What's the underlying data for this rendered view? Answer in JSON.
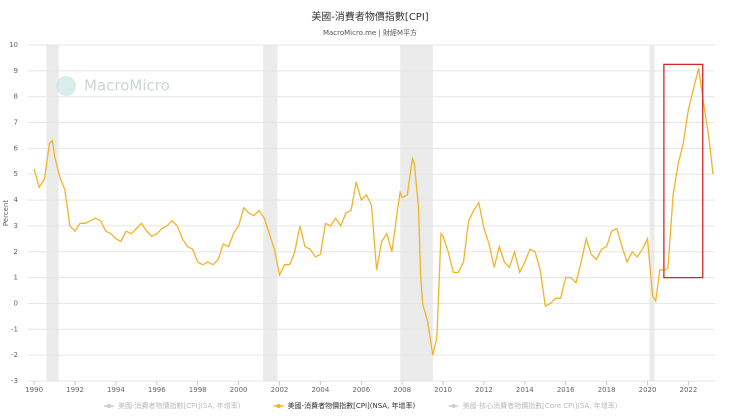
{
  "chart_data": {
    "type": "line",
    "title": "美國-消費者物價指數[CPI]",
    "subtitle": "MacroMicro.me | 財經M平方",
    "watermark": "MacroMicro",
    "y_label": "Percent",
    "xlim": [
      1989.7,
      2023.3
    ],
    "ylim": [
      -3,
      10
    ],
    "xticks": [
      1990,
      1992,
      1994,
      1996,
      1998,
      2000,
      2002,
      2004,
      2006,
      2008,
      2010,
      2012,
      2014,
      2016,
      2018,
      2020,
      2022
    ],
    "yticks": [
      -3,
      -2,
      -1,
      0,
      1,
      2,
      3,
      4,
      5,
      6,
      7,
      8,
      9,
      10
    ],
    "grid": true,
    "recessions": [
      [
        1990.6,
        1991.2
      ],
      [
        2001.2,
        2001.9
      ],
      [
        2007.9,
        2009.5
      ],
      [
        2020.1,
        2020.35
      ]
    ],
    "highlight": {
      "x": [
        2020.8,
        2022.7
      ],
      "y": [
        1,
        9.25
      ],
      "color": "#d62728"
    },
    "x": [
      1990.0,
      1990.25,
      1990.5,
      1990.75,
      1990.9,
      1991.0,
      1991.25,
      1991.5,
      1991.75,
      1992.0,
      1992.25,
      1992.5,
      1992.75,
      1993.0,
      1993.25,
      1993.5,
      1993.75,
      1994.0,
      1994.25,
      1994.5,
      1994.75,
      1995.0,
      1995.25,
      1995.5,
      1995.75,
      1996.0,
      1996.25,
      1996.5,
      1996.75,
      1997.0,
      1997.25,
      1997.5,
      1997.75,
      1998.0,
      1998.25,
      1998.5,
      1998.75,
      1999.0,
      1999.25,
      1999.5,
      1999.75,
      2000.0,
      2000.25,
      2000.5,
      2000.75,
      2001.0,
      2001.25,
      2001.5,
      2001.75,
      2002.0,
      2002.25,
      2002.5,
      2002.75,
      2003.0,
      2003.25,
      2003.5,
      2003.75,
      2004.0,
      2004.25,
      2004.5,
      2004.75,
      2005.0,
      2005.25,
      2005.5,
      2005.75,
      2006.0,
      2006.25,
      2006.5,
      2006.75,
      2007.0,
      2007.25,
      2007.5,
      2007.75,
      2007.9,
      2008.0,
      2008.25,
      2008.5,
      2008.6,
      2008.8,
      2008.9,
      2009.0,
      2009.25,
      2009.5,
      2009.7,
      2009.9,
      2010.0,
      2010.25,
      2010.5,
      2010.75,
      2011.0,
      2011.25,
      2011.5,
      2011.75,
      2012.0,
      2012.25,
      2012.5,
      2012.75,
      2013.0,
      2013.25,
      2013.5,
      2013.75,
      2014.0,
      2014.25,
      2014.5,
      2014.75,
      2015.0,
      2015.25,
      2015.5,
      2015.75,
      2016.0,
      2016.25,
      2016.5,
      2016.75,
      2017.0,
      2017.25,
      2017.5,
      2017.75,
      2018.0,
      2018.25,
      2018.5,
      2018.75,
      2019.0,
      2019.25,
      2019.5,
      2019.75,
      2020.0,
      2020.25,
      2020.4,
      2020.6,
      2020.9,
      2021.0,
      2021.25,
      2021.5,
      2021.75,
      2022.0,
      2022.25,
      2022.5,
      2022.75,
      2023.0,
      2023.2
    ],
    "series": [
      {
        "name": "美國-消費者物價指數[CPI](NSA, 年增率)",
        "color": "#f0b429",
        "values": [
          5.2,
          4.5,
          4.8,
          6.2,
          6.3,
          5.7,
          4.9,
          4.4,
          3.0,
          2.8,
          3.1,
          3.1,
          3.2,
          3.3,
          3.2,
          2.8,
          2.7,
          2.5,
          2.4,
          2.8,
          2.7,
          2.9,
          3.1,
          2.8,
          2.6,
          2.7,
          2.9,
          3.0,
          3.2,
          3.0,
          2.5,
          2.2,
          2.1,
          1.6,
          1.5,
          1.6,
          1.5,
          1.7,
          2.3,
          2.2,
          2.7,
          3.0,
          3.7,
          3.5,
          3.4,
          3.6,
          3.3,
          2.7,
          2.1,
          1.1,
          1.5,
          1.5,
          2.0,
          3.0,
          2.2,
          2.1,
          1.8,
          1.9,
          3.1,
          3.0,
          3.3,
          3.0,
          3.5,
          3.6,
          4.7,
          4.0,
          4.2,
          3.8,
          1.3,
          2.4,
          2.7,
          2.0,
          3.5,
          4.3,
          4.1,
          4.2,
          5.6,
          5.4,
          3.7,
          1.1,
          0.0,
          -0.7,
          -2.0,
          -1.3,
          2.7,
          2.6,
          2.0,
          1.2,
          1.2,
          1.6,
          3.2,
          3.6,
          3.9,
          2.9,
          2.3,
          1.4,
          2.2,
          1.6,
          1.4,
          2.0,
          1.2,
          1.6,
          2.1,
          2.0,
          1.3,
          -0.1,
          0.0,
          0.2,
          0.2,
          1.0,
          1.0,
          0.8,
          1.6,
          2.5,
          1.9,
          1.7,
          2.1,
          2.2,
          2.8,
          2.9,
          2.2,
          1.6,
          2.0,
          1.8,
          2.1,
          2.5,
          0.3,
          0.1,
          1.3,
          1.3,
          1.4,
          4.2,
          5.4,
          6.2,
          7.5,
          8.3,
          9.1,
          7.7,
          6.4,
          5.0
        ]
      }
    ],
    "legend_entries": [
      {
        "name": "美國-消費者物價指數[CPI](SA, 年增率)",
        "color": "#cccccc",
        "active": false
      },
      {
        "name": "美國-消費者物價指數[CPI](NSA, 年增率)",
        "color": "#f0b429",
        "active": true
      },
      {
        "name": "美國-核心消費者物價指數[Core CPI](SA, 年增率)",
        "color": "#cccccc",
        "active": false
      }
    ]
  }
}
